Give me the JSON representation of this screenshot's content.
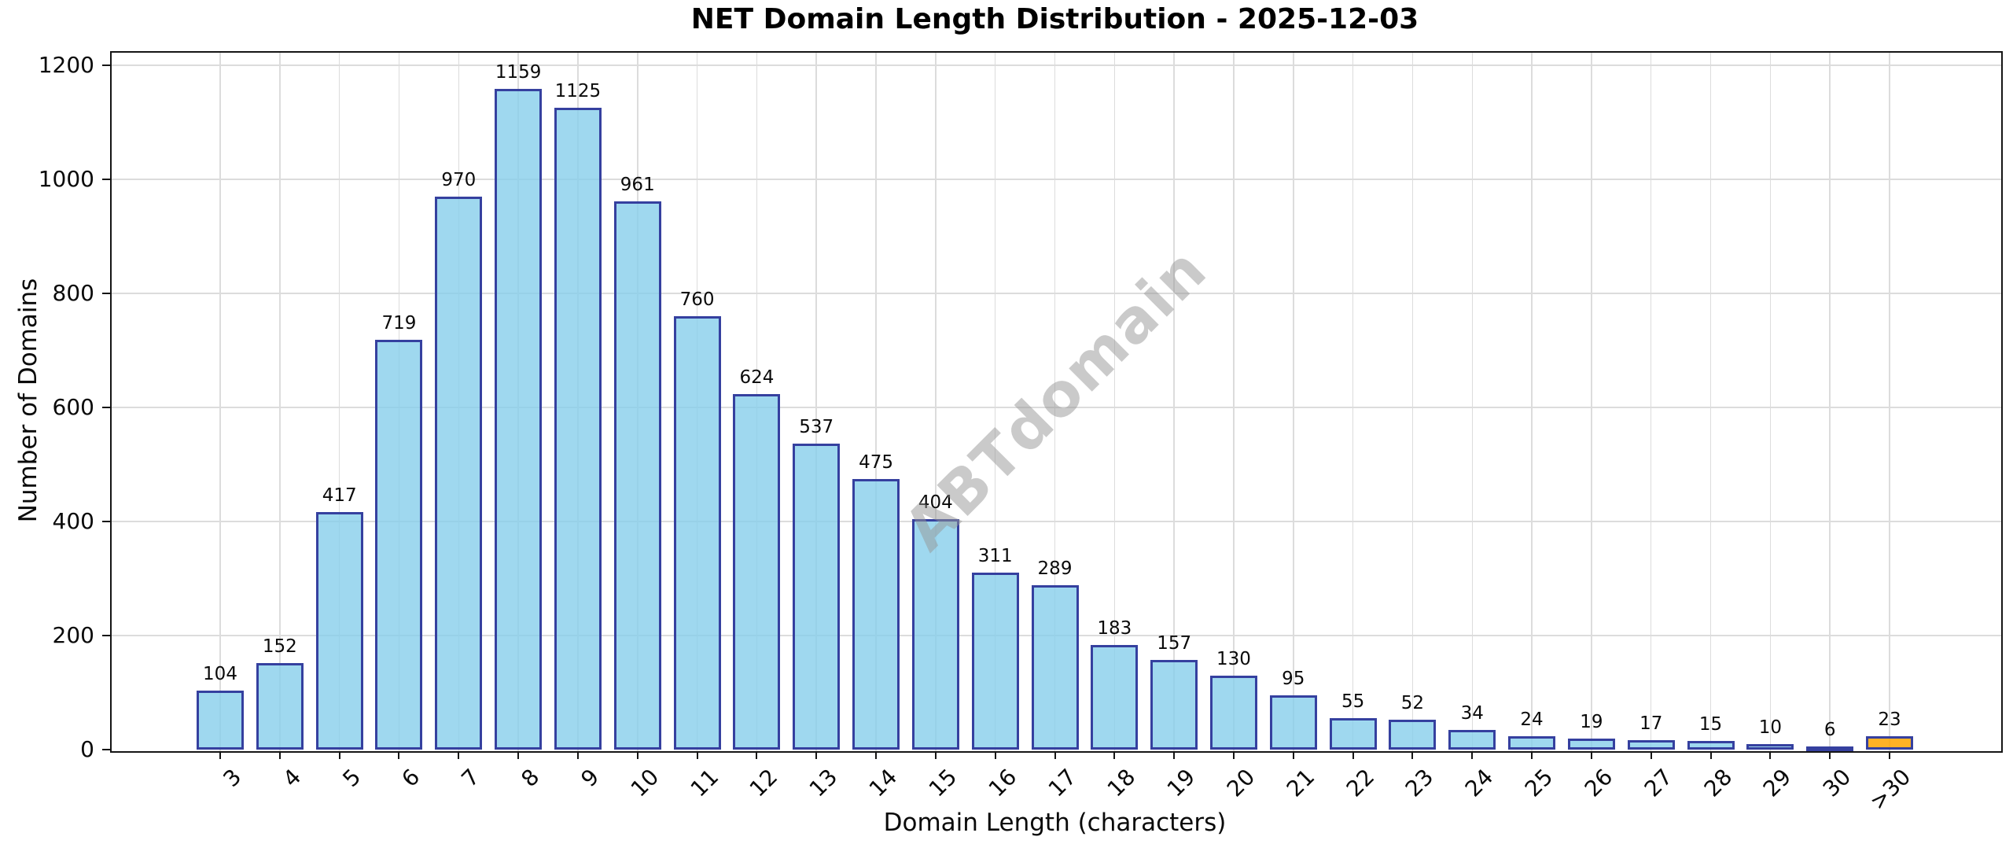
{
  "title": "NET Domain Length Distribution - 2025-12-03",
  "watermark": "ABTdomain",
  "chart_data": {
    "type": "bar",
    "title": "NET Domain Length Distribution - 2025-12-03",
    "xlabel": "Domain Length (characters)",
    "ylabel": "Number of Domains",
    "categories": [
      "3",
      "4",
      "5",
      "6",
      "7",
      "8",
      "9",
      "10",
      "11",
      "12",
      "13",
      "14",
      "15",
      "16",
      "17",
      "18",
      "19",
      "20",
      "21",
      "22",
      "23",
      "24",
      "25",
      "26",
      "27",
      "28",
      "29",
      "30",
      ">30"
    ],
    "values": [
      104,
      152,
      417,
      719,
      970,
      1159,
      1125,
      961,
      760,
      624,
      537,
      475,
      404,
      311,
      289,
      183,
      157,
      130,
      95,
      55,
      52,
      34,
      24,
      19,
      17,
      15,
      10,
      6,
      23
    ],
    "ylim": [
      0,
      1225
    ],
    "yticks": [
      0,
      200,
      400,
      600,
      800,
      1000,
      1200
    ],
    "grid": true,
    "x_tick_rotation": 45,
    "value_labels_shown": true,
    "highlight_index": 28,
    "colors": {
      "bar_fill": "rgba(135,206,235,0.8)",
      "bar_edge": "#35409f",
      "highlight_fill": "rgba(255,165,0,0.85)",
      "highlight_edge": "#35409f",
      "grid": "#dcdcdc",
      "axis": "#151515",
      "watermark_text": "rgba(150,150,150,0.5)"
    }
  }
}
